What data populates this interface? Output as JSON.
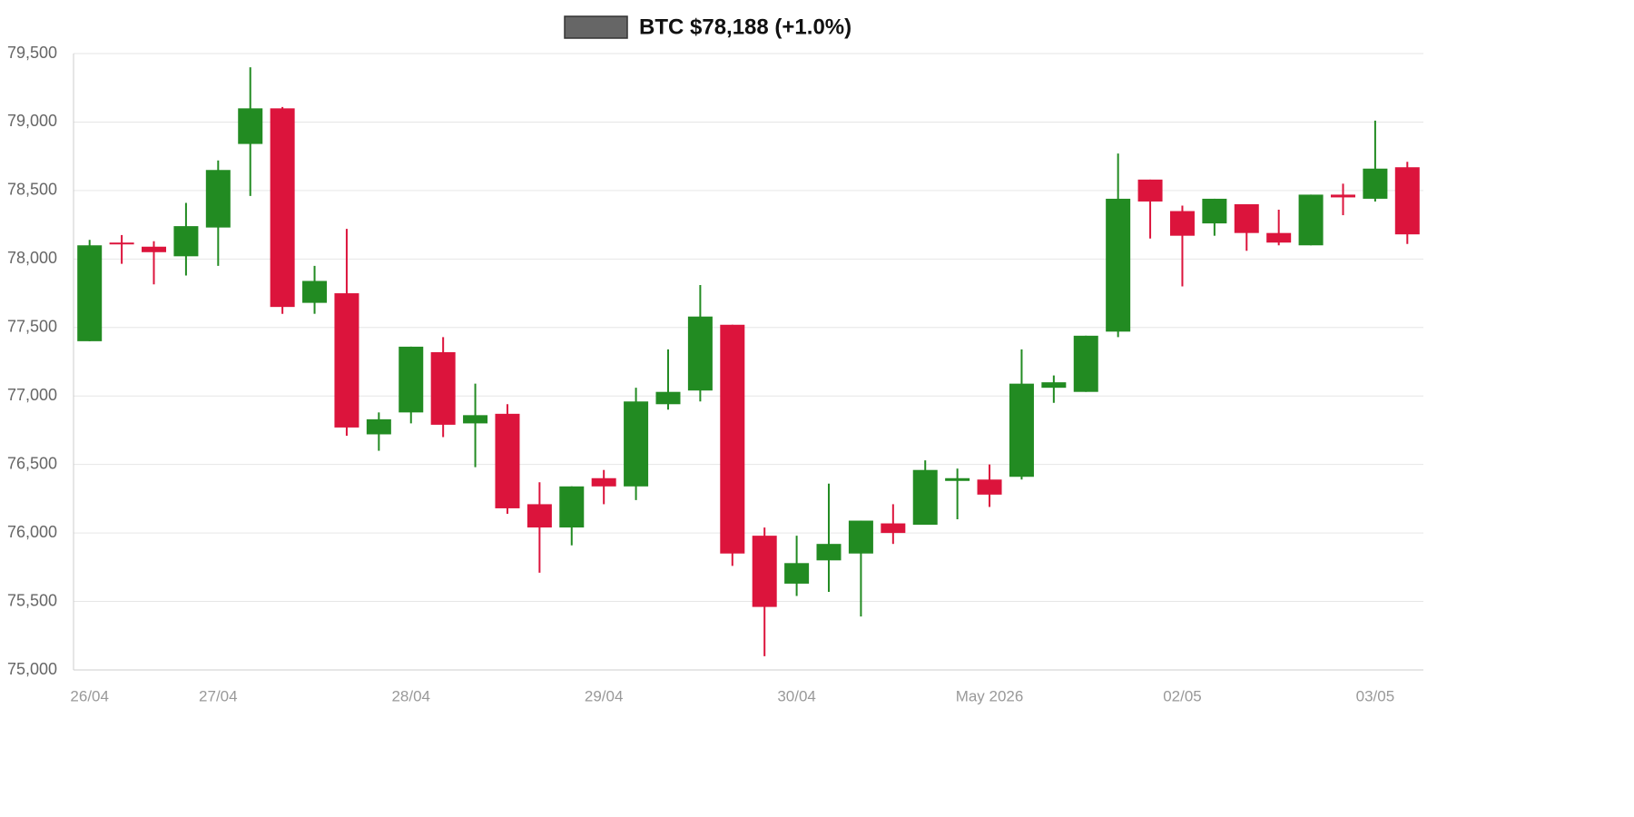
{
  "chart_data": {
    "type": "candlestick",
    "categories": [
      "26/04",
      null,
      null,
      null,
      "27/04",
      null,
      null,
      null,
      null,
      null,
      "28/04",
      null,
      null,
      null,
      null,
      null,
      "29/04",
      null,
      null,
      null,
      null,
      null,
      "30/04",
      null,
      null,
      null,
      null,
      null,
      "May 2026",
      null,
      null,
      null,
      null,
      null,
      "02/05",
      null,
      null,
      null,
      null,
      null,
      "03/05",
      null
    ],
    "series": [
      {
        "name": "BTC $78,188 (+1.0%)",
        "color": "#666666",
        "open": [
          77400,
          78120,
          78090,
          78020,
          78230,
          78840,
          79100,
          77680,
          77750,
          76720,
          76880,
          77320,
          76800,
          76870,
          76210,
          76040,
          76400,
          76340,
          76940,
          77040,
          77520,
          75980,
          75630,
          75800,
          75850,
          76070,
          76060,
          76380,
          76390,
          76410,
          77060,
          77030,
          77470,
          78580,
          78350,
          78260,
          78400,
          78190,
          78100,
          78470,
          78440,
          78670
        ],
        "high": [
          78140,
          78175,
          78130,
          78410,
          78720,
          79400,
          79110,
          77950,
          78220,
          76880,
          77360,
          77430,
          77090,
          76940,
          76370,
          76340,
          76460,
          77060,
          77340,
          77810,
          77520,
          76040,
          75980,
          76360,
          76090,
          76210,
          76530,
          76470,
          76500,
          77340,
          77150,
          77440,
          78770,
          78580,
          78390,
          78440,
          78400,
          78360,
          78470,
          78550,
          79010,
          78710
        ],
        "low": [
          77400,
          77965,
          77815,
          77880,
          77950,
          78460,
          77600,
          77600,
          76710,
          76600,
          76800,
          76700,
          76480,
          76140,
          75710,
          75910,
          76210,
          76240,
          76900,
          76960,
          75760,
          75100,
          75540,
          75570,
          75390,
          75920,
          76060,
          76100,
          76190,
          76390,
          76950,
          77030,
          77430,
          78150,
          77800,
          78170,
          78060,
          78100,
          78100,
          78320,
          78420,
          78110
        ],
        "close": [
          78100,
          78110,
          78050,
          78240,
          78650,
          79100,
          77650,
          77840,
          76770,
          76830,
          77360,
          76790,
          76860,
          76180,
          76040,
          76340,
          76340,
          76960,
          77030,
          77580,
          75850,
          75460,
          75780,
          75920,
          76090,
          76000,
          76460,
          76400,
          76280,
          77090,
          77100,
          77440,
          78440,
          78420,
          78170,
          78440,
          78190,
          78120,
          78470,
          78450,
          78660,
          78180
        ]
      }
    ],
    "up_color": "#228b22",
    "down_color": "#dc143c",
    "ylim": [
      75000,
      79500
    ],
    "yticks": [
      {
        "value": 75000,
        "label": "75,000"
      },
      {
        "value": 75500,
        "label": "75,500"
      },
      {
        "value": 76000,
        "label": "76,000"
      },
      {
        "value": 76500,
        "label": "76,500"
      },
      {
        "value": 77000,
        "label": "77,000"
      },
      {
        "value": 77500,
        "label": "77,500"
      },
      {
        "value": 78000,
        "label": "78,000"
      },
      {
        "value": 78500,
        "label": "78,500"
      },
      {
        "value": 79000,
        "label": "79,000"
      },
      {
        "value": 79500,
        "label": "79,500"
      }
    ],
    "grid": true
  }
}
